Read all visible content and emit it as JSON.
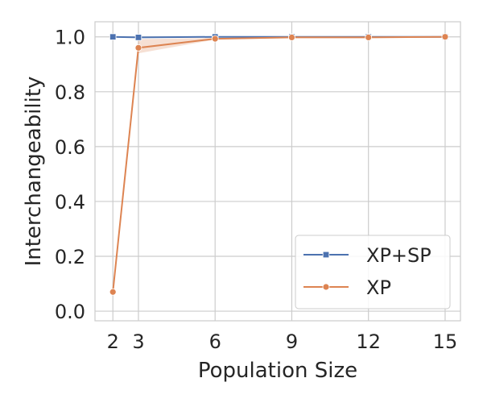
{
  "chart_data": {
    "type": "line",
    "xlabel": "Population Size",
    "ylabel": "Interchangeability",
    "x": [
      2,
      3,
      6,
      9,
      12,
      15
    ],
    "x_ticks": [
      "2",
      "3",
      "6",
      "9",
      "12",
      "15"
    ],
    "y_ticks": [
      "0.0",
      "0.2",
      "0.4",
      "0.6",
      "0.8",
      "1.0"
    ],
    "xlim": [
      1.3,
      15.6
    ],
    "ylim": [
      -0.035,
      1.055
    ],
    "grid": true,
    "legend_position": "bottom-right",
    "series": [
      {
        "name": "XP+SP",
        "color": "#4c72b0",
        "marker": "square",
        "values": [
          1.0,
          0.998,
          1.0,
          1.0,
          1.0,
          1.0
        ],
        "ci_lower": [
          1.0,
          0.998,
          1.0,
          1.0,
          1.0,
          1.0
        ],
        "ci_upper": [
          1.0,
          0.998,
          1.0,
          1.0,
          1.0,
          1.0
        ]
      },
      {
        "name": "XP",
        "color": "#dd8452",
        "marker": "circle",
        "values": [
          0.07,
          0.96,
          0.993,
          0.998,
          0.998,
          1.0
        ],
        "ci_lower": [
          0.07,
          0.94,
          0.99,
          0.998,
          0.998,
          1.0
        ],
        "ci_upper": [
          0.07,
          0.992,
          0.996,
          0.999,
          0.999,
          1.0
        ]
      }
    ]
  }
}
